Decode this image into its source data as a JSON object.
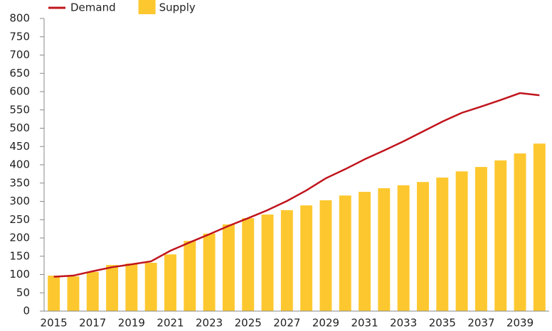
{
  "chart_data": {
    "type": "bar",
    "categories": [
      "2015",
      null,
      "2017",
      null,
      "2019",
      null,
      "2021",
      null,
      "2023",
      null,
      "2025",
      null,
      "2027",
      null,
      "2029",
      null,
      "2031",
      null,
      "2033",
      null,
      "2035",
      null,
      "2037",
      null,
      "2039",
      null
    ],
    "series": [
      {
        "name": "Demand",
        "type": "line",
        "color": "#c0141c",
        "values": [
          94,
          97,
          109,
          120,
          128,
          136,
          165,
          188,
          210,
          233,
          254,
          276,
          301,
          330,
          363,
          388,
          415,
          439,
          464,
          491,
          518,
          542,
          559,
          577,
          596,
          590
        ]
      },
      {
        "name": "Supply",
        "type": "bar",
        "color": "#fdc82f",
        "values": [
          97,
          95,
          107,
          126,
          130,
          132,
          155,
          192,
          212,
          237,
          254,
          264,
          276,
          289,
          303,
          316,
          326,
          336,
          344,
          353,
          365,
          382,
          394,
          412,
          431,
          458
        ]
      }
    ],
    "ylim": [
      0,
      800
    ],
    "yticks": [
      0,
      50,
      100,
      150,
      200,
      250,
      300,
      350,
      400,
      450,
      500,
      550,
      600,
      650,
      700,
      750,
      800
    ],
    "grid": false,
    "legend": "top-left"
  }
}
